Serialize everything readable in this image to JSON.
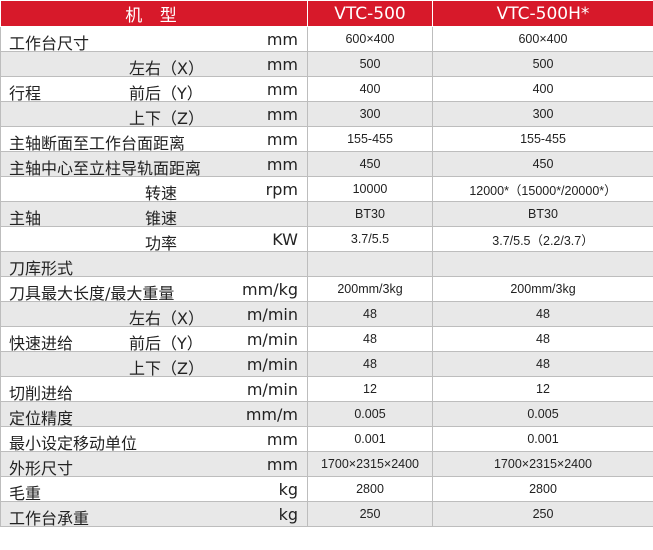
{
  "header": {
    "name": "机 型",
    "model_a": "VTC-500",
    "model_b": "VTC-500H*"
  },
  "rows": [
    {
      "label": "工作台尺寸",
      "sub": "",
      "unit": "mm",
      "a": "600×400",
      "b": "600×400"
    },
    {
      "label": "",
      "sub": "左右（X）",
      "unit": "mm",
      "a": "500",
      "b": "500"
    },
    {
      "label": "行程",
      "sub": "前后（Y）",
      "unit": "mm",
      "a": "400",
      "b": "400"
    },
    {
      "label": "",
      "sub": "上下（Z）",
      "unit": "mm",
      "a": "300",
      "b": "300"
    },
    {
      "label": "主轴断面至工作台面距离",
      "sub": "",
      "unit": "mm",
      "a": "155-455",
      "b": "155-455"
    },
    {
      "label": "主轴中心至立柱导轨面距离",
      "sub": "",
      "unit": "mm",
      "a": "450",
      "b": "450"
    },
    {
      "label": "",
      "sub": "转速",
      "unit": "rpm",
      "a": "10000",
      "b": "12000*（15000*/20000*）"
    },
    {
      "label": "主轴",
      "sub": "锥速",
      "unit": "",
      "a": "BT30",
      "b": "BT30"
    },
    {
      "label": "",
      "sub": "功率",
      "unit": "KW",
      "a": "3.7/5.5",
      "b": "3.7/5.5（2.2/3.7）"
    },
    {
      "label": "刀库形式",
      "sub": "",
      "unit": "",
      "a": "",
      "b": ""
    },
    {
      "label": "刀具最大长度/最大重量",
      "sub": "",
      "unit": "mm/kg",
      "a": "200mm/3kg",
      "b": "200mm/3kg"
    },
    {
      "label": "",
      "sub": "左右（X）",
      "unit": "m/min",
      "a": "48",
      "b": "48"
    },
    {
      "label": "快速进给",
      "sub": "前后（Y）",
      "unit": "m/min",
      "a": "48",
      "b": "48"
    },
    {
      "label": "",
      "sub": "上下（Z）",
      "unit": "m/min",
      "a": "48",
      "b": "48"
    },
    {
      "label": "切削进给",
      "sub": "",
      "unit": "m/min",
      "a": "12",
      "b": "12"
    },
    {
      "label": "定位精度",
      "sub": "",
      "unit": "mm/m",
      "a": "0.005",
      "b": "0.005"
    },
    {
      "label": "最小设定移动单位",
      "sub": "",
      "unit": "mm",
      "a": "0.001",
      "b": "0.001"
    },
    {
      "label": "外形尺寸",
      "sub": "",
      "unit": "mm",
      "a": "1700×2315×2400",
      "b": "1700×2315×2400"
    },
    {
      "label": "毛重",
      "sub": "",
      "unit": "kg",
      "a": "2800",
      "b": "2800"
    },
    {
      "label": "工作台承重",
      "sub": "",
      "unit": "kg",
      "a": "250",
      "b": "250"
    }
  ]
}
